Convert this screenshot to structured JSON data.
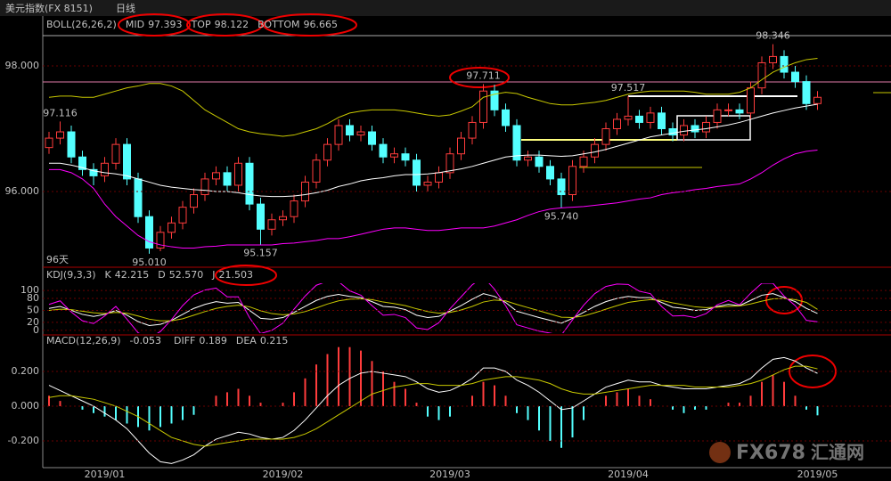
{
  "header": {
    "title": "美元指数(FX 8151)",
    "period": "日线",
    "days": "96天",
    "watermark": "FX678",
    "watermark_cn": "汇通网"
  },
  "chart_data": [
    {
      "type": "candlestick",
      "title": "BOLL(26,26,2)",
      "categories": [
        null,
        null,
        null,
        null,
        null,
        "2019/01",
        null,
        null,
        null,
        null,
        null,
        null,
        null,
        null,
        null,
        null,
        null,
        null,
        null,
        null,
        null,
        "2019/02",
        null,
        null,
        null,
        null,
        null,
        null,
        null,
        null,
        null,
        null,
        null,
        null,
        null,
        null,
        "2019/03",
        null,
        null,
        null,
        null,
        null,
        null,
        null,
        null,
        null,
        null,
        null,
        null,
        null,
        null,
        null,
        "2019/04",
        null,
        null,
        null,
        null,
        null,
        null,
        null,
        null,
        null,
        null,
        null,
        null,
        null,
        null,
        null,
        null,
        "2019/05"
      ],
      "up_color": "#ff3c3c",
      "down_color": "#54ffff",
      "open": [
        96.7,
        96.85,
        96.95,
        96.55,
        96.35,
        96.25,
        96.45,
        96.75,
        96.2,
        95.6,
        95.1,
        95.35,
        95.5,
        95.75,
        95.95,
        96.2,
        96.3,
        96.1,
        96.45,
        95.8,
        95.4,
        95.55,
        95.6,
        95.85,
        96.15,
        96.5,
        96.75,
        97.05,
        96.9,
        96.95,
        96.75,
        96.55,
        96.6,
        96.5,
        96.1,
        96.15,
        96.3,
        96.6,
        96.85,
        97.1,
        97.6,
        97.3,
        97.05,
        96.5,
        96.55,
        96.4,
        96.2,
        95.95,
        96.4,
        96.55,
        96.75,
        97.0,
        97.15,
        97.2,
        97.1,
        97.25,
        97.0,
        96.9,
        97.05,
        96.95,
        97.1,
        97.3,
        97.3,
        97.25,
        97.65,
        98.05,
        98.15,
        97.9,
        97.75,
        97.4
      ],
      "high": [
        96.95,
        97.116,
        97.05,
        96.65,
        96.45,
        96.55,
        96.85,
        96.85,
        96.3,
        95.7,
        95.45,
        95.6,
        95.85,
        96.05,
        96.3,
        96.4,
        96.4,
        96.55,
        96.55,
        95.9,
        95.65,
        95.7,
        95.95,
        96.25,
        96.6,
        96.85,
        97.15,
        97.15,
        97.05,
        97.05,
        96.85,
        96.7,
        96.7,
        96.6,
        96.25,
        96.4,
        96.7,
        96.95,
        97.2,
        97.711,
        97.7,
        97.4,
        97.15,
        96.65,
        96.65,
        96.5,
        96.3,
        96.5,
        96.65,
        96.85,
        97.1,
        97.25,
        97.517,
        97.3,
        97.35,
        97.35,
        97.1,
        97.15,
        97.15,
        97.2,
        97.4,
        97.4,
        97.4,
        97.75,
        98.15,
        98.346,
        98.25,
        98.0,
        97.85,
        97.6
      ],
      "low": [
        96.6,
        96.75,
        96.45,
        96.25,
        96.1,
        96.15,
        96.35,
        96.1,
        95.5,
        95.01,
        95.05,
        95.25,
        95.4,
        95.65,
        95.85,
        96.1,
        96.0,
        96.0,
        95.7,
        95.157,
        95.3,
        95.45,
        95.5,
        95.75,
        96.05,
        96.4,
        96.65,
        96.8,
        96.8,
        96.65,
        96.45,
        96.45,
        96.4,
        96.0,
        96.0,
        96.05,
        96.2,
        96.5,
        96.75,
        97.0,
        97.2,
        96.95,
        96.4,
        96.4,
        96.3,
        96.1,
        95.74,
        95.85,
        96.3,
        96.45,
        96.65,
        96.9,
        97.05,
        97.0,
        97.0,
        96.9,
        96.8,
        96.8,
        96.85,
        96.85,
        97.0,
        97.2,
        97.15,
        97.15,
        97.55,
        97.95,
        97.8,
        97.65,
        97.3,
        97.3
      ],
      "close": [
        96.85,
        96.95,
        96.55,
        96.35,
        96.25,
        96.45,
        96.75,
        96.2,
        95.6,
        95.1,
        95.35,
        95.5,
        95.75,
        95.95,
        96.2,
        96.3,
        96.1,
        96.45,
        95.8,
        95.4,
        95.55,
        95.6,
        95.85,
        96.15,
        96.5,
        96.75,
        97.05,
        96.9,
        96.95,
        96.75,
        96.55,
        96.6,
        96.5,
        96.1,
        96.15,
        96.3,
        96.6,
        96.85,
        97.1,
        97.6,
        97.3,
        97.05,
        96.5,
        96.55,
        96.4,
        96.2,
        95.95,
        96.4,
        96.55,
        96.75,
        97.0,
        97.15,
        97.2,
        97.1,
        97.25,
        97.0,
        96.9,
        97.05,
        96.95,
        97.1,
        97.3,
        97.3,
        97.25,
        97.65,
        98.05,
        98.15,
        97.9,
        97.75,
        97.4,
        97.5
      ],
      "series": [
        {
          "name": "MID",
          "color": "#ffffff",
          "legend_value": 97.393,
          "values": [
            96.45,
            96.45,
            96.42,
            96.38,
            96.33,
            96.3,
            96.28,
            96.25,
            96.2,
            96.15,
            96.1,
            96.07,
            96.05,
            96.03,
            96.02,
            96.0,
            96.0,
            95.98,
            95.95,
            95.93,
            95.92,
            95.92,
            95.93,
            95.95,
            95.98,
            96.02,
            96.08,
            96.12,
            96.17,
            96.2,
            96.22,
            96.25,
            96.27,
            96.27,
            96.28,
            96.3,
            96.33,
            96.36,
            96.4,
            96.45,
            96.5,
            96.55,
            96.57,
            96.58,
            96.58,
            96.57,
            96.56,
            96.57,
            96.6,
            96.63,
            96.67,
            96.72,
            96.77,
            96.82,
            96.87,
            96.9,
            96.93,
            96.96,
            96.98,
            97.0,
            97.03,
            97.06,
            97.1,
            97.15,
            97.2,
            97.25,
            97.29,
            97.33,
            97.36,
            97.39
          ]
        },
        {
          "name": "TOP",
          "color": "#c8c800",
          "legend_value": 98.122,
          "values": [
            97.5,
            97.52,
            97.52,
            97.5,
            97.5,
            97.55,
            97.6,
            97.65,
            97.68,
            97.72,
            97.72,
            97.68,
            97.6,
            97.45,
            97.3,
            97.2,
            97.1,
            97.0,
            96.95,
            96.92,
            96.9,
            96.88,
            96.9,
            96.95,
            97.0,
            97.08,
            97.18,
            97.25,
            97.28,
            97.3,
            97.3,
            97.3,
            97.28,
            97.25,
            97.22,
            97.2,
            97.22,
            97.28,
            97.35,
            97.5,
            97.55,
            97.58,
            97.56,
            97.5,
            97.45,
            97.4,
            97.38,
            97.38,
            97.4,
            97.42,
            97.45,
            97.5,
            97.55,
            97.58,
            97.6,
            97.6,
            97.6,
            97.6,
            97.58,
            97.55,
            97.55,
            97.55,
            97.58,
            97.65,
            97.78,
            97.9,
            97.98,
            98.05,
            98.1,
            98.12
          ]
        },
        {
          "name": "BOTTOM",
          "color": "#ff00ff",
          "legend_value": 96.665,
          "values": [
            96.35,
            96.35,
            96.3,
            96.2,
            96.05,
            95.8,
            95.6,
            95.45,
            95.3,
            95.2,
            95.15,
            95.12,
            95.1,
            95.1,
            95.12,
            95.13,
            95.15,
            95.15,
            95.15,
            95.15,
            95.15,
            95.17,
            95.18,
            95.2,
            95.22,
            95.25,
            95.25,
            95.28,
            95.32,
            95.36,
            95.4,
            95.42,
            95.42,
            95.4,
            95.38,
            95.38,
            95.4,
            95.42,
            95.42,
            95.42,
            95.45,
            95.5,
            95.55,
            95.62,
            95.68,
            95.72,
            95.74,
            95.75,
            95.76,
            95.78,
            95.8,
            95.82,
            95.85,
            95.88,
            95.9,
            95.95,
            95.98,
            96.0,
            96.03,
            96.05,
            96.08,
            96.1,
            96.12,
            96.2,
            96.3,
            96.42,
            96.52,
            96.6,
            96.64,
            96.66
          ]
        }
      ],
      "annotations": [
        {
          "value": 97.116,
          "label": "97.116"
        },
        {
          "value": 95.01,
          "label": "95.010"
        },
        {
          "value": 95.157,
          "label": "95.157"
        },
        {
          "value": 97.711,
          "label": "97.711"
        },
        {
          "value": 95.74,
          "label": "95.740"
        },
        {
          "value": 97.517,
          "label": "97.517"
        },
        {
          "value": 98.346,
          "label": "98.346"
        }
      ],
      "ylim": [
        94.823,
        98.553
      ],
      "yticks": [
        {
          "value": 98,
          "label": "98.000"
        },
        {
          "value": 96,
          "label": "96.000"
        }
      ],
      "grid": true
    },
    {
      "type": "line",
      "title": "KDJ(9,3,3)",
      "series": [
        {
          "name": "K",
          "color": "#ffffff",
          "legend_value": 42.215,
          "values": [
            55,
            60,
            50,
            40,
            35,
            40,
            50,
            38,
            22,
            12,
            15,
            25,
            40,
            55,
            65,
            72,
            68,
            70,
            50,
            30,
            28,
            32,
            45,
            60,
            75,
            85,
            90,
            85,
            82,
            72,
            60,
            58,
            52,
            38,
            32,
            35,
            48,
            62,
            78,
            92,
            85,
            70,
            48,
            40,
            32,
            25,
            18,
            30,
            45,
            60,
            72,
            80,
            85,
            82,
            82,
            70,
            58,
            55,
            50,
            52,
            60,
            65,
            62,
            75,
            88,
            92,
            82,
            72,
            55,
            42.215
          ]
        },
        {
          "name": "D",
          "color": "#c8c800",
          "legend_value": {
            "value": 52.57,
            "label": "52.570"
          },
          "values": [
            50,
            53,
            52,
            48,
            44,
            42,
            45,
            43,
            36,
            28,
            24,
            24,
            29,
            38,
            47,
            55,
            60,
            63,
            59,
            49,
            42,
            39,
            41,
            47,
            56,
            66,
            74,
            78,
            79,
            77,
            71,
            67,
            62,
            54,
            47,
            43,
            45,
            51,
            60,
            71,
            76,
            74,
            65,
            57,
            49,
            41,
            33,
            32,
            36,
            44,
            53,
            62,
            70,
            74,
            77,
            75,
            69,
            64,
            59,
            57,
            58,
            60,
            61,
            66,
            73,
            79,
            80,
            77,
            70,
            52.57
          ]
        },
        {
          "name": "J",
          "color": "#ff00ff",
          "legend_value": 21.503,
          "values": [
            65,
            74,
            46,
            24,
            17,
            36,
            60,
            28,
            -6,
            -20,
            -3,
            27,
            62,
            89,
            101,
            106,
            84,
            84,
            32,
            -8,
            0,
            18,
            53,
            86,
            113,
            123,
            122,
            99,
            88,
            62,
            38,
            40,
            32,
            6,
            2,
            19,
            54,
            84,
            114,
            134,
            103,
            62,
            14,
            6,
            -2,
            -7,
            -12,
            26,
            63,
            92,
            110,
            116,
            115,
            98,
            92,
            60,
            36,
            37,
            32,
            42,
            64,
            75,
            64,
            93,
            118,
            118,
            86,
            62,
            25,
            21.503
          ]
        }
      ],
      "ylim": [
        -7,
        118
      ],
      "yticks": [
        100,
        80,
        50,
        20,
        0
      ],
      "grid": true
    },
    {
      "type": "macd",
      "title": "MACD(12,26,9)",
      "series": [
        {
          "type": "bar",
          "color": "#ff3c3c",
          "negative_color": "#54ffff",
          "legend_value": -0.053,
          "values": [
            0.06,
            0.03,
            0,
            -0.02,
            -0.04,
            -0.06,
            -0.08,
            -0.1,
            -0.12,
            -0.14,
            -0.12,
            -0.1,
            -0.08,
            -0.05,
            0,
            0.06,
            0.08,
            0.1,
            0.06,
            0.02,
            0,
            0.02,
            0.08,
            0.16,
            0.24,
            0.3,
            0.34,
            0.34,
            0.32,
            0.26,
            0.2,
            0.14,
            0.1,
            0.02,
            -0.06,
            -0.08,
            -0.06,
            0,
            0.06,
            0.14,
            0.12,
            0.06,
            -0.04,
            -0.08,
            -0.14,
            -0.2,
            -0.24,
            -0.18,
            -0.08,
            0,
            0.06,
            0.08,
            0.1,
            0.06,
            0.04,
            0,
            -0.02,
            -0.04,
            -0.02,
            -0.02,
            0,
            0.02,
            0.02,
            0.06,
            0.14,
            0.18,
            0.14,
            0.06,
            -0.02,
            -0.053
          ]
        },
        {
          "type": "line",
          "name": "DIFF",
          "color": "#ffffff",
          "legend_value": 0.189,
          "values": [
            0.12,
            0.09,
            0.06,
            0.03,
            0.0,
            -0.04,
            -0.08,
            -0.13,
            -0.2,
            -0.27,
            -0.32,
            -0.33,
            -0.31,
            -0.28,
            -0.23,
            -0.19,
            -0.17,
            -0.15,
            -0.16,
            -0.18,
            -0.19,
            -0.18,
            -0.14,
            -0.08,
            -0.01,
            0.06,
            0.12,
            0.16,
            0.19,
            0.2,
            0.19,
            0.18,
            0.17,
            0.14,
            0.1,
            0.08,
            0.09,
            0.12,
            0.16,
            0.22,
            0.22,
            0.2,
            0.15,
            0.12,
            0.08,
            0.03,
            -0.02,
            -0.01,
            0.03,
            0.07,
            0.11,
            0.13,
            0.15,
            0.14,
            0.14,
            0.12,
            0.11,
            0.1,
            0.1,
            0.1,
            0.11,
            0.12,
            0.13,
            0.16,
            0.22,
            0.27,
            0.28,
            0.26,
            0.22,
            0.189
          ]
        },
        {
          "type": "line",
          "name": "DEA",
          "color": "#c8c800",
          "legend_value": 0.215,
          "values": [
            0.05,
            0.06,
            0.06,
            0.05,
            0.04,
            0.02,
            0.0,
            -0.03,
            -0.06,
            -0.1,
            -0.14,
            -0.18,
            -0.2,
            -0.22,
            -0.23,
            -0.22,
            -0.21,
            -0.2,
            -0.19,
            -0.19,
            -0.19,
            -0.19,
            -0.18,
            -0.16,
            -0.13,
            -0.09,
            -0.05,
            -0.01,
            0.03,
            0.07,
            0.09,
            0.11,
            0.12,
            0.13,
            0.13,
            0.12,
            0.12,
            0.12,
            0.13,
            0.15,
            0.16,
            0.17,
            0.17,
            0.16,
            0.15,
            0.13,
            0.1,
            0.08,
            0.07,
            0.07,
            0.08,
            0.09,
            0.1,
            0.11,
            0.12,
            0.12,
            0.12,
            0.12,
            0.11,
            0.11,
            0.11,
            0.11,
            0.12,
            0.13,
            0.15,
            0.18,
            0.21,
            0.23,
            0.23,
            0.215
          ]
        }
      ],
      "ylim": [
        -0.354,
        0.4
      ],
      "yticks": [
        {
          "value": 0.2,
          "label": "0.200"
        },
        {
          "value": 0,
          "label": "0.000"
        },
        {
          "value": -0.2,
          "label": "-0.200"
        }
      ],
      "grid": true
    }
  ]
}
